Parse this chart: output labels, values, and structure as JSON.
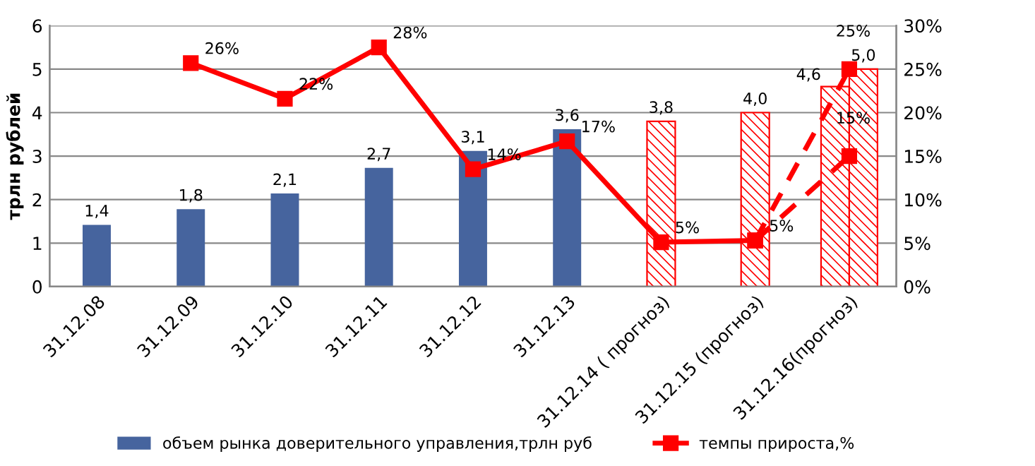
{
  "chart_data": {
    "type": "bar",
    "categories": [
      "31.12.08",
      "31.12.09",
      "31.12.10",
      "31.12.11",
      "31.12.12",
      "31.12.13",
      "31.12.14 ( прогноз)",
      "31.12.15 (прогноз)",
      "31.12.16(прогноз)"
    ],
    "ylabel": "трлн рублей",
    "ylim": [
      0,
      6
    ],
    "yticks": [
      0,
      1,
      2,
      3,
      4,
      5,
      6
    ],
    "y2lim": [
      0,
      30
    ],
    "y2ticks": [
      {
        "value": 0,
        "label": "0%"
      },
      {
        "value": 5,
        "label": "5%"
      },
      {
        "value": 10,
        "label": "10%"
      },
      {
        "value": 15,
        "label": "15%"
      },
      {
        "value": 20,
        "label": "20%"
      },
      {
        "value": 25,
        "label": "25%"
      },
      {
        "value": 30,
        "label": "30%"
      }
    ],
    "grid": "y",
    "legend": "bottom",
    "series": [
      {
        "name": "объем рынка доверительного управления,трлн руб",
        "color": "#46649e",
        "values": [
          1.42,
          1.78,
          2.14,
          2.73,
          3.12,
          3.62,
          null,
          null,
          null
        ],
        "value_labels": [
          "1,4",
          "1,8",
          "2,1",
          "2,7",
          "3,1",
          "3,6",
          null,
          null,
          null
        ]
      },
      {
        "color": "#ff0000",
        "values": [
          null,
          null,
          null,
          null,
          null,
          null,
          3.8,
          4.0,
          4.6
        ],
        "value_labels": [
          null,
          null,
          null,
          null,
          null,
          null,
          "3,8",
          "4,0",
          "4,6"
        ]
      },
      {
        "color": "#ff0000",
        "values": [
          null,
          null,
          null,
          null,
          null,
          null,
          null,
          null,
          5.0
        ],
        "value_labels": [
          null,
          null,
          null,
          null,
          null,
          null,
          null,
          null,
          "5,0"
        ]
      },
      {
        "name": "темпы прироста,%",
        "type": "line",
        "axis": "y2",
        "color": "#ff0000",
        "marker": "square",
        "line_style": "solid",
        "values": [
          null,
          25.7,
          21.6,
          27.5,
          13.5,
          16.7,
          5.1,
          5.3,
          null
        ],
        "value_labels": [
          null,
          "26%",
          "22%",
          "28%",
          "14%",
          "17%",
          "5%",
          "5%",
          null
        ]
      },
      {
        "type": "line",
        "axis": "y2",
        "color": "#ff0000",
        "marker": "square",
        "line_style": "dashed",
        "values": [
          null,
          null,
          null,
          null,
          null,
          null,
          null,
          5.3,
          25.0
        ],
        "value_labels": [
          null,
          null,
          null,
          null,
          null,
          null,
          null,
          null,
          "25%"
        ]
      },
      {
        "type": "line",
        "axis": "y2",
        "color": "#ff0000",
        "marker": "square",
        "line_style": "dashed",
        "values": [
          null,
          null,
          null,
          null,
          null,
          null,
          null,
          5.3,
          15.0
        ],
        "value_labels": [
          null,
          null,
          null,
          null,
          null,
          null,
          null,
          null,
          "15%"
        ]
      }
    ]
  }
}
